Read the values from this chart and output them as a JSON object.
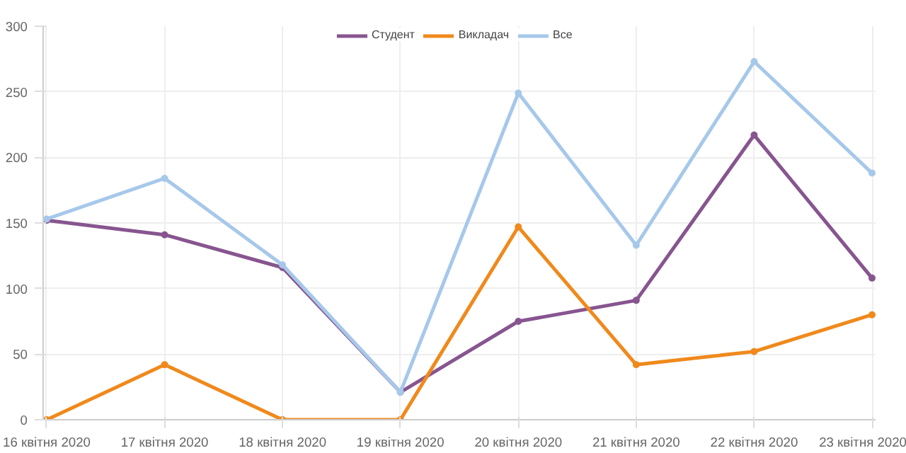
{
  "chart_data": {
    "type": "line",
    "categories": [
      "16 квітня 2020",
      "17 квітня 2020",
      "18 квітня 2020",
      "19 квітня 2020",
      "20 квітня 2020",
      "21 квітня 2020",
      "22 квітня 2020",
      "23 квітня 2020"
    ],
    "series": [
      {
        "name": "Студент",
        "color": "#87558f",
        "values": [
          152,
          141,
          116,
          21,
          75,
          91,
          217,
          108
        ]
      },
      {
        "name": "Викладач",
        "color": "#f0891c",
        "values": [
          0,
          42,
          0,
          0,
          147,
          42,
          52,
          80
        ]
      },
      {
        "name": "Все",
        "color": "#a6c8ea",
        "values": [
          153,
          184,
          118,
          21,
          249,
          133,
          273,
          188
        ]
      }
    ],
    "ylim": [
      0,
      300
    ],
    "yticks": [
      0,
      50,
      100,
      150,
      200,
      250,
      300
    ],
    "grid": true,
    "legend": "top",
    "marker": "circle",
    "line_style": "solid"
  }
}
